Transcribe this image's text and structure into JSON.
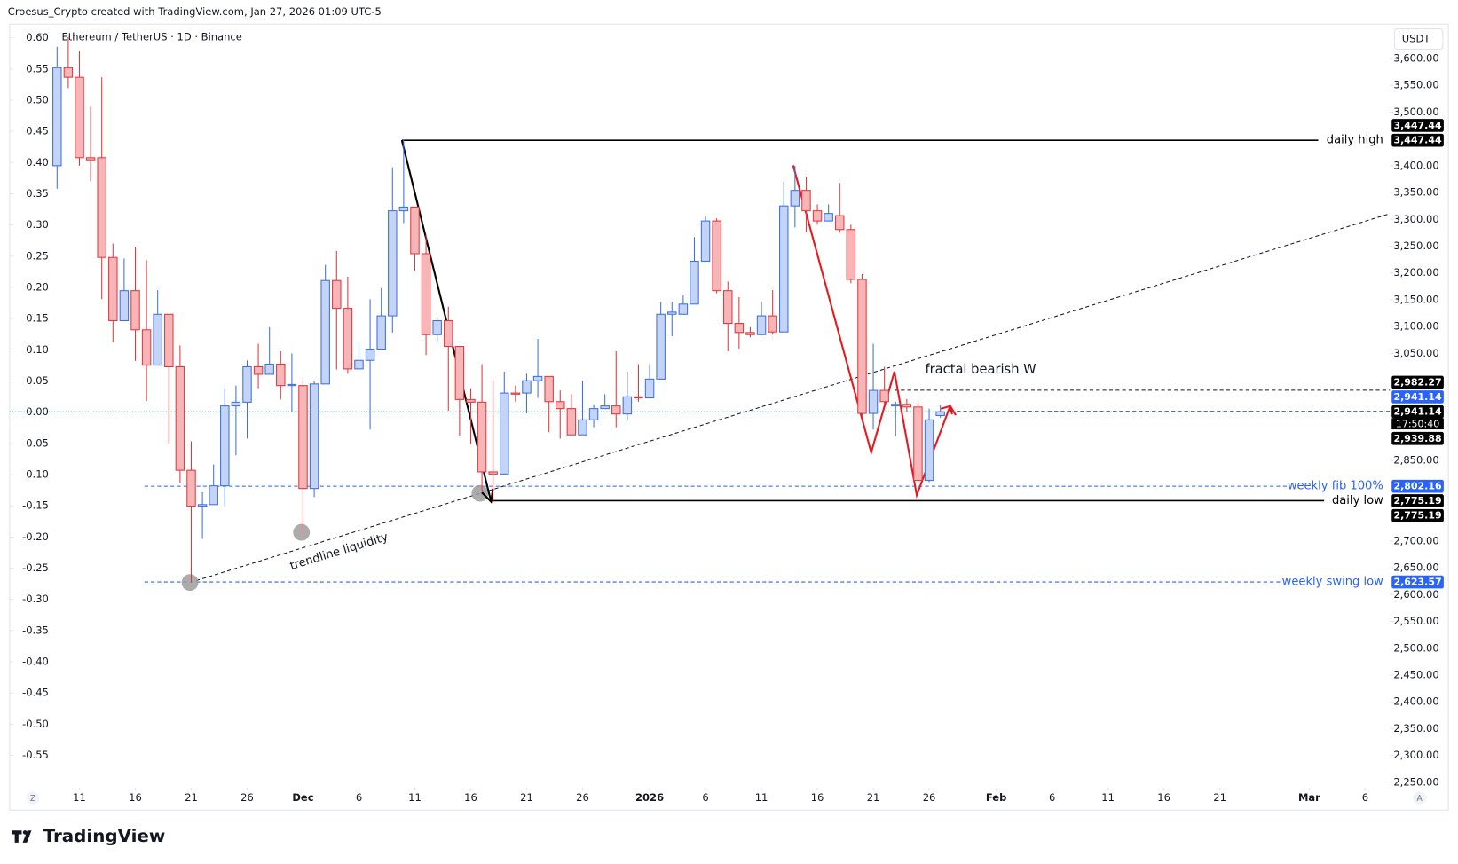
{
  "header": {
    "credit": "Croesus_Crypto created with TradingView.com, Jan 27, 2026 01:09 UTC-5",
    "logo": "TradingView"
  },
  "chart_data": {
    "type": "candlestick",
    "title": "Ethereum / TetherUS · 1D · Binance",
    "currency": "USDT",
    "x": [
      0,
      1,
      2,
      3,
      4,
      5,
      6,
      7,
      8,
      9,
      10,
      11,
      12,
      13,
      14,
      15,
      16,
      17,
      18,
      19,
      20,
      21,
      22,
      23,
      24,
      25,
      26,
      27,
      28,
      29,
      30,
      31,
      32,
      33,
      34,
      35,
      36,
      37,
      38,
      39,
      40,
      41,
      42,
      43,
      44,
      45,
      46,
      47,
      48,
      49,
      50,
      51,
      52,
      53,
      54,
      55,
      56,
      57,
      58,
      59,
      60,
      61,
      62,
      63,
      64,
      65,
      66,
      67,
      68,
      69,
      70,
      71,
      72,
      73,
      74,
      75,
      76,
      77,
      78,
      79
    ],
    "open": [
      3400,
      3583,
      3565,
      3415,
      3415,
      3229,
      3111,
      3167,
      3094,
      3028,
      3123,
      3025,
      2832,
      2765,
      2768,
      2803,
      2952,
      2959,
      3025,
      3011,
      3030,
      2990,
      2990,
      2798,
      2993,
      3186,
      3134,
      3021,
      3037,
      3058,
      3120,
      3316,
      3323,
      3236,
      3085,
      3111,
      3063,
      2964,
      2959,
      2829,
      2825,
      2976,
      2976,
      2999,
      3007,
      2960,
      2947,
      2898,
      2926,
      2947,
      2952,
      2937,
      2969,
      2967,
      3002,
      3123,
      3123,
      3142,
      3222,
      3297,
      3167,
      3106,
      3089,
      3085,
      3120,
      3090,
      3325,
      3354,
      3316,
      3297,
      3307,
      3281,
      3188,
      2938,
      2981,
      2952,
      2955,
      2950,
      2813,
      2934
    ],
    "high": [
      3622,
      3640,
      3614,
      3510,
      3565,
      3255,
      3227,
      3248,
      3224,
      3168,
      3123,
      3065,
      2886,
      2791,
      2843,
      2985,
      2990,
      3037,
      3068,
      3099,
      3054,
      3050,
      3002,
      2998,
      3215,
      3241,
      3193,
      3071,
      3151,
      3172,
      3397,
      3449,
      3323,
      3272,
      3115,
      3137,
      3063,
      2985,
      3030,
      2999,
      3016,
      2990,
      3012,
      3077,
      3007,
      2981,
      2974,
      2999,
      2955,
      2974,
      3054,
      3016,
      3030,
      3030,
      3146,
      3146,
      3158,
      3267,
      3305,
      3302,
      3184,
      3155,
      3099,
      3146,
      3168,
      3371,
      3400,
      3380,
      3328,
      3328,
      3368,
      3290,
      3198,
      3068,
      3025,
      2960,
      2965,
      2960,
      2947,
      2955
    ],
    "low": [
      3357,
      3545,
      3400,
      3371,
      3151,
      3071,
      3111,
      3036,
      2961,
      3028,
      2881,
      2808,
      2623,
      2704,
      2768,
      2765,
      2860,
      2891,
      2985,
      3011,
      2964,
      2941,
      2713,
      2782,
      2993,
      3020,
      3012,
      3021,
      2908,
      3058,
      3089,
      3293,
      3203,
      3047,
      3071,
      2943,
      2895,
      2881,
      2794,
      2773,
      2825,
      2960,
      2938,
      2967,
      2903,
      2891,
      2898,
      2898,
      2912,
      2947,
      2912,
      2926,
      2960,
      2967,
      3002,
      3082,
      3123,
      3142,
      3222,
      3162,
      3054,
      3059,
      3080,
      3085,
      3085,
      3090,
      3285,
      3276,
      3290,
      3297,
      3275,
      3181,
      2933,
      2908,
      2955,
      2895,
      2940,
      2808,
      2810,
      2930
    ],
    "close": [
      3583,
      3565,
      3415,
      3411,
      3229,
      3111,
      3167,
      3094,
      3028,
      3123,
      3025,
      2832,
      2765,
      2768,
      2803,
      2952,
      2959,
      3025,
      3011,
      3030,
      2990,
      2992,
      2798,
      2993,
      3186,
      3134,
      3021,
      3037,
      3058,
      3120,
      3316,
      3323,
      3236,
      3085,
      3111,
      3063,
      2964,
      2959,
      2829,
      2825,
      2976,
      2974,
      2999,
      3007,
      2960,
      2947,
      2898,
      2926,
      2947,
      2952,
      2937,
      2969,
      2967,
      3002,
      3123,
      3127,
      3142,
      3222,
      3297,
      3167,
      3106,
      3089,
      3085,
      3120,
      3090,
      3325,
      3354,
      3316,
      3297,
      3311,
      3281,
      3188,
      2938,
      2981,
      2960,
      2955,
      2950,
      2813,
      2926,
      2941.14
    ],
    "up_color": "#3d6fe6",
    "up_fill": "#c4d4f7",
    "down_color": "#e5363c",
    "down_fill": "#f6b6b8",
    "xlim": [
      -4.24,
      119.2
    ],
    "xticks": [
      {
        "value": 2,
        "label": "11"
      },
      {
        "value": 7,
        "label": "16"
      },
      {
        "value": 12,
        "label": "21"
      },
      {
        "value": 17,
        "label": "26"
      },
      {
        "value": 22,
        "label": "Dec"
      },
      {
        "value": 27,
        "label": "6"
      },
      {
        "value": 32,
        "label": "11"
      },
      {
        "value": 37,
        "label": "16"
      },
      {
        "value": 42,
        "label": "21"
      },
      {
        "value": 47,
        "label": "26"
      },
      {
        "value": 53,
        "label": "2026"
      },
      {
        "value": 58,
        "label": "6"
      },
      {
        "value": 63,
        "label": "11"
      },
      {
        "value": 68,
        "label": "16"
      },
      {
        "value": 73,
        "label": "21"
      },
      {
        "value": 78,
        "label": "26"
      },
      {
        "value": 84,
        "label": "Feb"
      },
      {
        "value": 89,
        "label": "6"
      },
      {
        "value": 94,
        "label": "11"
      },
      {
        "value": 99,
        "label": "16"
      },
      {
        "value": 104,
        "label": "21"
      },
      {
        "value": 112,
        "label": "Mar"
      },
      {
        "value": 117,
        "label": "6"
      }
    ],
    "ylim": [
      2239.6,
      3660.7
    ],
    "yticks": [
      {
        "value": 3600,
        "label": "3,600.00"
      },
      {
        "value": 3550,
        "label": "3,550.00"
      },
      {
        "value": 3500,
        "label": "3,500.00"
      },
      {
        "value": 3400,
        "label": "3,400.00"
      },
      {
        "value": 3350,
        "label": "3,350.00"
      },
      {
        "value": 3300,
        "label": "3,300.00"
      },
      {
        "value": 3250,
        "label": "3,250.00"
      },
      {
        "value": 3200,
        "label": "3,200.00"
      },
      {
        "value": 3150,
        "label": "3,150.00"
      },
      {
        "value": 3100,
        "label": "3,100.00"
      },
      {
        "value": 3050,
        "label": "3,050.00"
      },
      {
        "value": 2850,
        "label": "2,850.00"
      },
      {
        "value": 2700,
        "label": "2,700.00"
      },
      {
        "value": 2650,
        "label": "2,650.00"
      },
      {
        "value": 2600,
        "label": "2,600.00"
      },
      {
        "value": 2550,
        "label": "2,550.00"
      },
      {
        "value": 2500,
        "label": "2,500.00"
      },
      {
        "value": 2450,
        "label": "2,450.00"
      },
      {
        "value": 2400,
        "label": "2,400.00"
      },
      {
        "value": 2350,
        "label": "2,350.00"
      },
      {
        "value": 2300,
        "label": "2,300.00"
      },
      {
        "value": 2250,
        "label": "2,250.00"
      }
    ],
    "y2lim": [
      -0.602,
      0.619
    ],
    "y2ticks": [
      {
        "value": 0.6,
        "label": "0.60"
      },
      0.55,
      {
        "value": 0.5,
        "label": "0.50"
      },
      0.45,
      {
        "value": 0.4,
        "label": "0.40"
      },
      0.35,
      {
        "value": 0.3,
        "label": "0.30"
      },
      0.25,
      {
        "value": 0.2,
        "label": "0.20"
      },
      0.15,
      {
        "value": 0.1,
        "label": "0.10"
      },
      0.05,
      {
        "value": 0,
        "label": "0.00"
      },
      -0.05,
      {
        "value": -0.1,
        "label": "-0.10"
      },
      -0.15,
      {
        "value": -0.2,
        "label": "-0.20"
      },
      -0.25,
      {
        "value": -0.3,
        "label": "-0.30"
      },
      -0.35,
      {
        "value": -0.4,
        "label": "-0.40"
      },
      -0.45,
      {
        "value": -0.5,
        "label": "-0.50"
      },
      -0.55
    ],
    "levels": [
      {
        "name": "daily high",
        "value": 3447.44,
        "color": "#000000",
        "style": "solid"
      },
      {
        "name": "daily low",
        "value": 2775.19,
        "color": "#000000",
        "style": "solid"
      },
      {
        "name": "weekly fib 100%",
        "value": 2802.16,
        "color": "#2962ff",
        "style": "dashed"
      },
      {
        "name": "weekly swing low",
        "value": 2623.57,
        "color": "#2962ff",
        "style": "dashed"
      }
    ],
    "last_price": 2941.14,
    "price_tags": [
      {
        "value": 3447.44,
        "label": "3,447.44",
        "color": "#000000"
      },
      {
        "value": 3447.44,
        "label": "3,447.44",
        "color": "#000000"
      },
      {
        "value": 2982.27,
        "label": "2,982.27",
        "color": "#000000"
      },
      {
        "value": 2941.14,
        "label": "2,941.14",
        "color": "#2962ff"
      },
      {
        "value": 2941.14,
        "label": "2,941.14",
        "color": "#000000"
      },
      {
        "value": 2939.88,
        "label": "2,939.88",
        "color": "#000000"
      },
      {
        "value": 2802.16,
        "label": "2,802.16",
        "color": "#2962ff"
      },
      {
        "value": 2775.19,
        "label": "2,775.19",
        "color": "#000000"
      },
      {
        "value": 2775.19,
        "label": "2,775.19",
        "color": "#000000"
      },
      {
        "value": 2623.57,
        "label": "2,623.57",
        "color": "#2962ff"
      }
    ],
    "countdown": "17:50:40",
    "annotations": [
      "fractal bearish W",
      "trendline liquidity"
    ],
    "buttons": [
      "Z",
      "A"
    ]
  }
}
